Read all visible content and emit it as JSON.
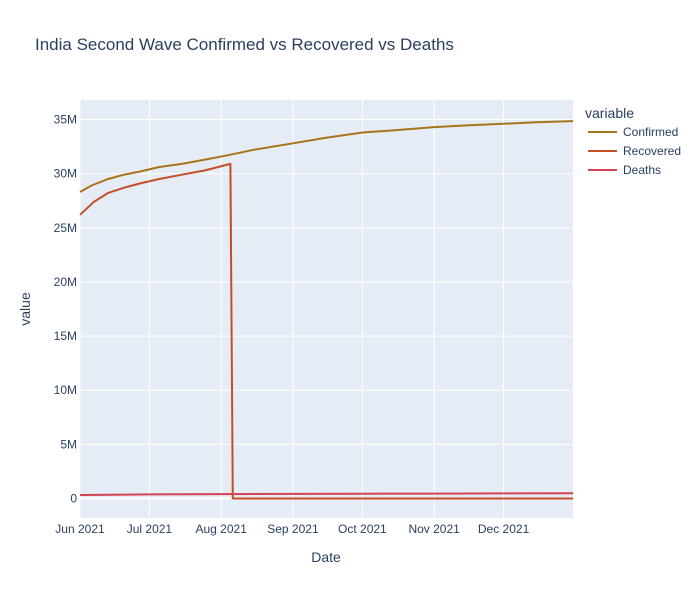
{
  "chart_data": {
    "type": "line",
    "title": "India Second Wave Confirmed vs Recovered vs Deaths",
    "xlabel": "Date",
    "ylabel": "value",
    "x_range": [
      "2021-06-01",
      "2021-12-31"
    ],
    "ylim": [
      -1800000,
      36800000
    ],
    "x_ticks": [
      {
        "date": "2021-06-01",
        "label": "Jun 2021"
      },
      {
        "date": "2021-07-01",
        "label": "Jul 2021"
      },
      {
        "date": "2021-08-01",
        "label": "Aug 2021"
      },
      {
        "date": "2021-09-01",
        "label": "Sep 2021"
      },
      {
        "date": "2021-10-01",
        "label": "Oct 2021"
      },
      {
        "date": "2021-11-01",
        "label": "Nov 2021"
      },
      {
        "date": "2021-12-01",
        "label": "Dec 2021"
      }
    ],
    "y_ticks": [
      {
        "value": 0,
        "label": "0"
      },
      {
        "value": 5000000,
        "label": "5M"
      },
      {
        "value": 10000000,
        "label": "10M"
      },
      {
        "value": 15000000,
        "label": "15M"
      },
      {
        "value": 20000000,
        "label": "20M"
      },
      {
        "value": 25000000,
        "label": "25M"
      },
      {
        "value": 30000000,
        "label": "30M"
      },
      {
        "value": 35000000,
        "label": "35M"
      }
    ],
    "grid": true,
    "legend": {
      "title": "variable",
      "placement": "top-right"
    },
    "series": [
      {
        "name": "Confirmed",
        "color": "#a8741a",
        "points": [
          [
            "2021-06-01",
            28300000
          ],
          [
            "2021-06-06",
            28900000
          ],
          [
            "2021-06-13",
            29500000
          ],
          [
            "2021-06-20",
            29900000
          ],
          [
            "2021-06-27",
            30200000
          ],
          [
            "2021-07-05",
            30600000
          ],
          [
            "2021-07-15",
            30900000
          ],
          [
            "2021-07-25",
            31300000
          ],
          [
            "2021-08-04",
            31700000
          ],
          [
            "2021-08-15",
            32200000
          ],
          [
            "2021-09-01",
            32800000
          ],
          [
            "2021-09-15",
            33300000
          ],
          [
            "2021-10-01",
            33800000
          ],
          [
            "2021-10-15",
            34000000
          ],
          [
            "2021-11-01",
            34300000
          ],
          [
            "2021-11-15",
            34450000
          ],
          [
            "2021-12-01",
            34600000
          ],
          [
            "2021-12-15",
            34750000
          ],
          [
            "2021-12-31",
            34850000
          ]
        ]
      },
      {
        "name": "Recovered",
        "color": "#c44e27",
        "points": [
          [
            "2021-06-01",
            26200000
          ],
          [
            "2021-06-07",
            27400000
          ],
          [
            "2021-06-13",
            28200000
          ],
          [
            "2021-06-20",
            28700000
          ],
          [
            "2021-06-27",
            29100000
          ],
          [
            "2021-07-05",
            29500000
          ],
          [
            "2021-07-15",
            29900000
          ],
          [
            "2021-07-25",
            30300000
          ],
          [
            "2021-08-05",
            30900000
          ],
          [
            "2021-08-06",
            0
          ],
          [
            "2021-12-31",
            0
          ]
        ]
      },
      {
        "name": "Deaths",
        "color": "#d44355",
        "points": [
          [
            "2021-06-01",
            320000
          ],
          [
            "2021-07-01",
            380000
          ],
          [
            "2021-08-01",
            410000
          ],
          [
            "2021-09-01",
            430000
          ],
          [
            "2021-10-01",
            445000
          ],
          [
            "2021-11-01",
            455000
          ],
          [
            "2021-12-01",
            468000
          ],
          [
            "2021-12-31",
            480000
          ]
        ]
      }
    ]
  }
}
